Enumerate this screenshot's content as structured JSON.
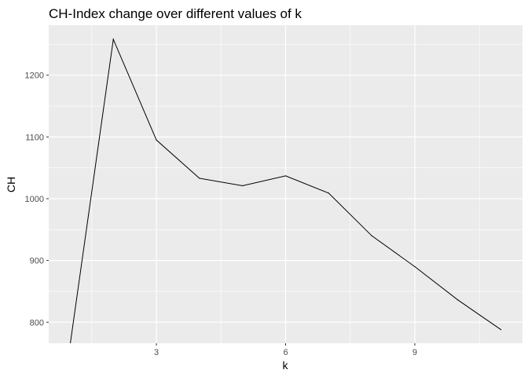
{
  "chart_data": {
    "type": "line",
    "title": "CH-Index change over different values of k",
    "xlabel": "k",
    "ylabel": "CH",
    "x": [
      1,
      2,
      3,
      4,
      5,
      6,
      7,
      8,
      9,
      10,
      11
    ],
    "y": [
      765,
      1258,
      1095,
      1033,
      1021,
      1037,
      1009,
      940,
      890,
      836,
      788
    ],
    "xlim": [
      0.5,
      11.5
    ],
    "ylim": [
      766,
      1281
    ],
    "x_ticks": [
      3,
      6,
      9
    ],
    "x_tick_labels": [
      "3",
      "6",
      "9"
    ],
    "y_ticks": [
      800,
      900,
      1000,
      1100,
      1200
    ],
    "y_tick_labels": [
      "800",
      "900",
      "1000",
      "1100",
      "1200"
    ],
    "grid": true,
    "legend": "none",
    "colors": {
      "panel_background": "#ebebeb",
      "grid_major": "#ffffff",
      "line": "#000000",
      "tick_text": "#4d4d4d"
    }
  }
}
